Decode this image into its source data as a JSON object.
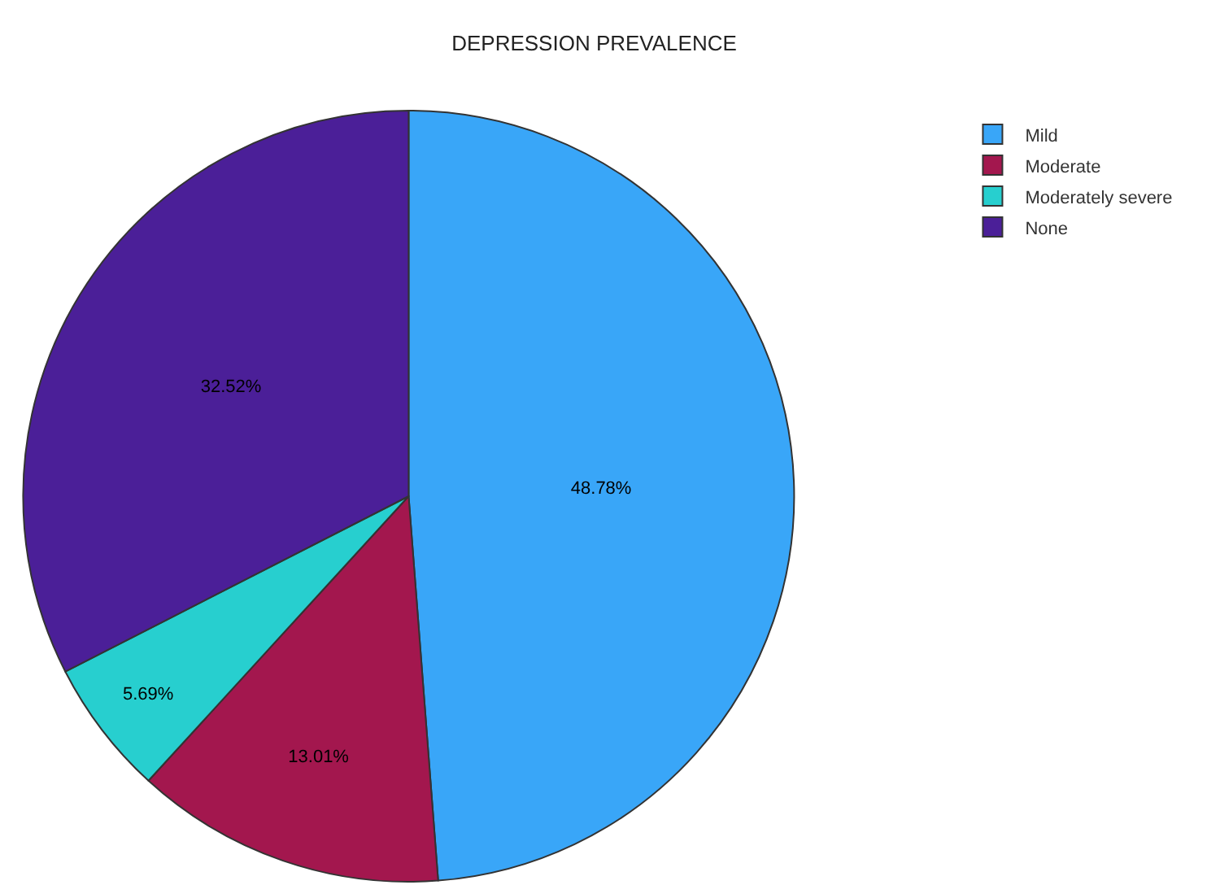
{
  "chart_data": {
    "type": "pie",
    "title": "DEPRESSION PREVALENCE",
    "categories": [
      "Mild",
      "Moderate",
      "Moderately severe",
      "None"
    ],
    "values": [
      48.78,
      13.01,
      5.69,
      32.52
    ],
    "colors": [
      "#39a6f8",
      "#a3174e",
      "#27cfcf",
      "#4b1f98"
    ],
    "value_labels": [
      "48.78%",
      "13.01%",
      "5.69%",
      "32.52%"
    ],
    "legend": "top right"
  }
}
